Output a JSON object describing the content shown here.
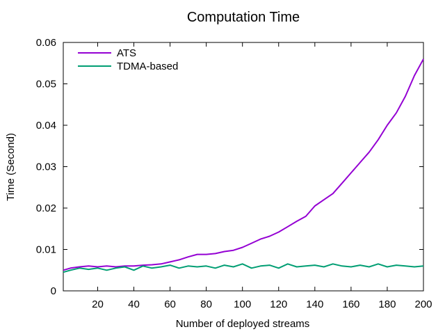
{
  "chart_data": {
    "type": "line",
    "title": "Computation Time",
    "xlabel": "Number of deployed streams",
    "ylabel": "Time (Second)",
    "xlim": [
      1,
      200
    ],
    "ylim": [
      0,
      0.06
    ],
    "xticks": [
      20,
      40,
      60,
      80,
      100,
      120,
      140,
      160,
      180,
      200
    ],
    "xtick_labels": [
      "20",
      "40",
      "60",
      "80",
      "100",
      "120",
      "140",
      "160",
      "180",
      "200"
    ],
    "yticks": [
      0,
      0.01,
      0.02,
      0.03,
      0.04,
      0.05,
      0.06
    ],
    "ytick_labels": [
      "0",
      "0.01",
      "0.02",
      "0.03",
      "0.04",
      "0.05",
      "0.06"
    ],
    "grid": false,
    "legend_position": "top-left",
    "series": [
      {
        "name": "ATS",
        "color": "#9400d3",
        "x": [
          1,
          5,
          10,
          15,
          20,
          25,
          30,
          35,
          40,
          45,
          50,
          55,
          60,
          65,
          70,
          75,
          80,
          85,
          90,
          95,
          100,
          105,
          110,
          115,
          120,
          125,
          130,
          135,
          140,
          145,
          150,
          155,
          160,
          165,
          170,
          175,
          180,
          185,
          190,
          195,
          200
        ],
        "y": [
          0.005,
          0.0055,
          0.0058,
          0.006,
          0.0058,
          0.006,
          0.0058,
          0.006,
          0.006,
          0.0062,
          0.0063,
          0.0065,
          0.007,
          0.0075,
          0.0082,
          0.0088,
          0.0088,
          0.009,
          0.0095,
          0.0098,
          0.0105,
          0.0115,
          0.0125,
          0.0132,
          0.0142,
          0.0155,
          0.0168,
          0.018,
          0.0205,
          0.022,
          0.0235,
          0.026,
          0.0285,
          0.031,
          0.0335,
          0.0365,
          0.04,
          0.043,
          0.047,
          0.052,
          0.056
        ]
      },
      {
        "name": "TDMA-based",
        "color": "#009e73",
        "x": [
          1,
          5,
          10,
          15,
          20,
          25,
          30,
          35,
          40,
          45,
          50,
          55,
          60,
          65,
          70,
          75,
          80,
          85,
          90,
          95,
          100,
          105,
          110,
          115,
          120,
          125,
          130,
          135,
          140,
          145,
          150,
          155,
          160,
          165,
          170,
          175,
          180,
          185,
          190,
          195,
          200
        ],
        "y": [
          0.0045,
          0.005,
          0.0055,
          0.0052,
          0.0055,
          0.005,
          0.0055,
          0.0058,
          0.005,
          0.006,
          0.0055,
          0.0058,
          0.0062,
          0.0055,
          0.006,
          0.0058,
          0.006,
          0.0055,
          0.0062,
          0.0058,
          0.0065,
          0.0055,
          0.006,
          0.0062,
          0.0055,
          0.0065,
          0.0058,
          0.006,
          0.0062,
          0.0058,
          0.0065,
          0.006,
          0.0058,
          0.0062,
          0.0058,
          0.0065,
          0.0058,
          0.0062,
          0.006,
          0.0058,
          0.006
        ]
      }
    ]
  }
}
